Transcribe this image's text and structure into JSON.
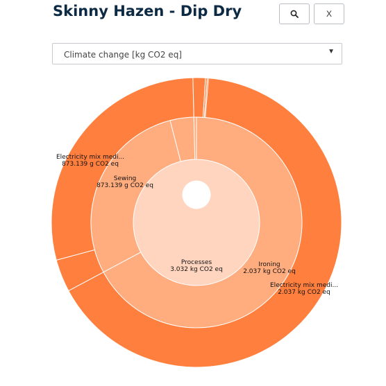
{
  "header": {
    "title": "Skinny Hazen - Dip Dry",
    "search_icon": "search-icon",
    "close_label": "X"
  },
  "indicator_select": {
    "value": "Climate change [kg CO2 eq]"
  },
  "colors": {
    "outer": "#ff7f3e",
    "middle": "#ffac7f",
    "inner": "#ffd5c0",
    "stroke": "#ffffff"
  },
  "chart_data": {
    "type": "sunburst",
    "total": 3.032,
    "unit": "kg CO2 eq",
    "rings": [
      [
        {
          "name": "Processes",
          "value": 3.032,
          "label": "3.032 kg CO2 eq"
        }
      ],
      [
        {
          "name": "Ironing",
          "value": 2.037,
          "label": "2.037 kg CO2 eq"
        },
        {
          "name": "Sewing",
          "value": 0.873139,
          "label": "873.139 g CO2 eq"
        },
        {
          "name": "",
          "value": 0.11,
          "label": ""
        },
        {
          "name": "",
          "value": 0.012,
          "label": ""
        }
      ],
      [
        {
          "name": "Electricity mix medi...",
          "value": 2.037,
          "label": "2.037 kg CO2 eq"
        },
        {
          "name": "",
          "value": 0.11,
          "label": ""
        },
        {
          "name": "Electricity mix medi...",
          "value": 0.873139,
          "label": "873.139 g CO2 eq"
        },
        {
          "name": "",
          "value": 0.042,
          "label": ""
        },
        {
          "name": "",
          "value": 0.006,
          "label": ""
        },
        {
          "name": "",
          "value": 0.004,
          "label": ""
        }
      ]
    ]
  }
}
